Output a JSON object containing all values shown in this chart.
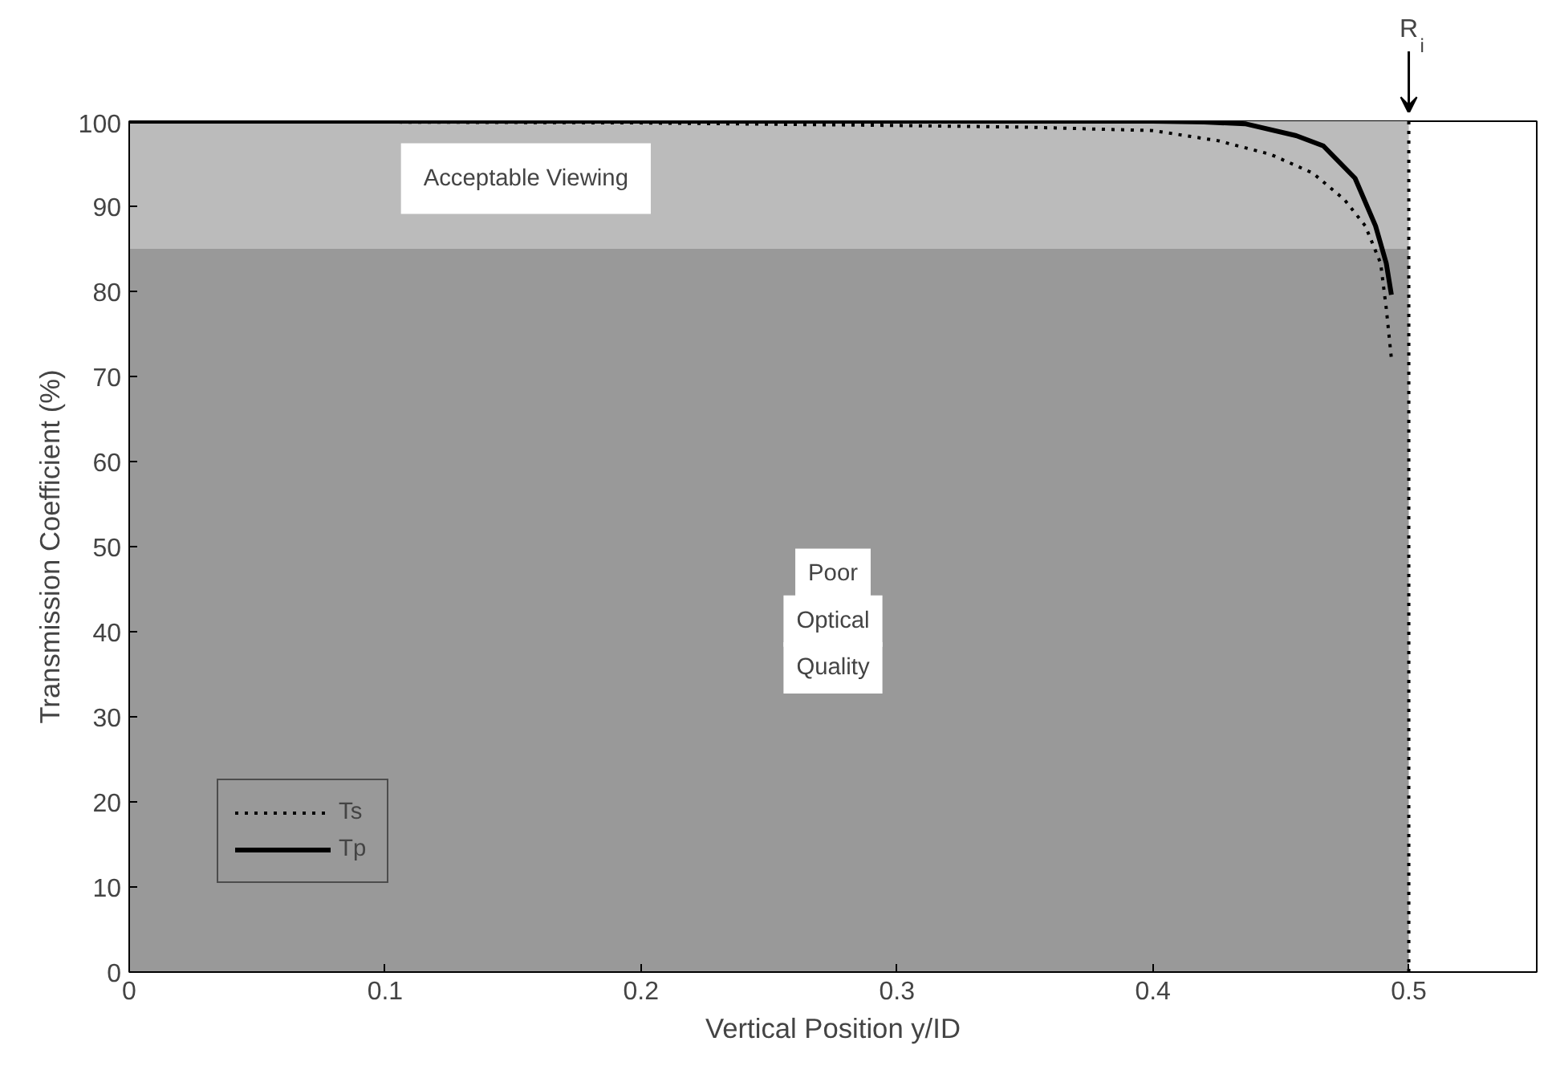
{
  "chart_data": {
    "type": "line",
    "xlabel": "Vertical Position y/ID",
    "ylabel": "Transmission Coefficient (%)",
    "xlim": [
      0,
      0.55
    ],
    "ylim": [
      0,
      100
    ],
    "xticks": [
      0,
      0.1,
      0.2,
      0.3,
      0.4,
      0.5
    ],
    "yticks": [
      0,
      10,
      20,
      30,
      40,
      50,
      60,
      70,
      80,
      90,
      100
    ],
    "series": [
      {
        "name": "Ts",
        "color": "#000000",
        "line_style": "dotted",
        "x": [
          0,
          0.1,
          0.2,
          0.3,
          0.35,
          0.4,
          0.4256,
          0.446,
          0.4625,
          0.4748,
          0.483,
          0.489,
          0.4912,
          0.4932
        ],
        "values": [
          100,
          99.9,
          99.8,
          99.5,
          99.3,
          98.9,
          97.7,
          96.1,
          93.9,
          90.8,
          87.7,
          83.3,
          78,
          72.1
        ]
      },
      {
        "name": "Tp",
        "color": "#000000",
        "line_style": "solid",
        "x": [
          0,
          0.1,
          0.2,
          0.3,
          0.4,
          0.42,
          0.436,
          0.456,
          0.4666,
          0.479,
          0.487,
          0.4912,
          0.4932
        ],
        "values": [
          100,
          100,
          100,
          100,
          100,
          99.9,
          99.7,
          98.3,
          97.1,
          93.3,
          87.7,
          83.3,
          79.6
        ]
      }
    ],
    "bands": [
      {
        "axis": "y",
        "from": 0,
        "to": 85,
        "label": "Poor\nOptical\nQuality",
        "color": "#999999"
      },
      {
        "axis": "y",
        "from": 85,
        "to": 100,
        "label": "Acceptable Viewing",
        "color": "#bbbbbb"
      }
    ],
    "ref_lines": [
      {
        "axis": "x",
        "value": 0.5,
        "label": "R$_{i}$",
        "color": "#000000",
        "line_style": "dotted"
      }
    ],
    "legend": "bottom left",
    "grid": false,
    "marker": "none"
  }
}
